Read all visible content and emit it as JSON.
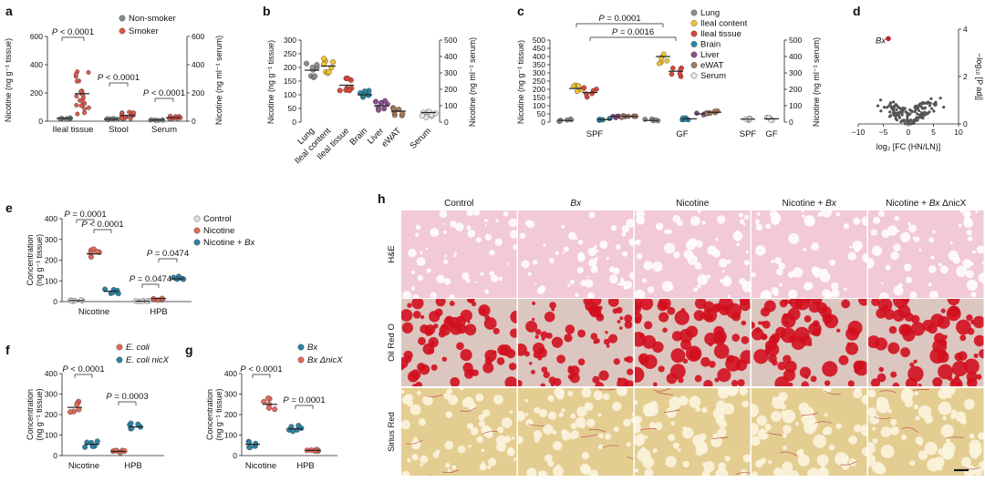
{
  "panel_letters": [
    "a",
    "b",
    "c",
    "d",
    "e",
    "f",
    "g",
    "h"
  ],
  "colors": {
    "non_smoker": "#7f8f8f",
    "smoker": "#dc5a4f",
    "lung": "#8e8e8e",
    "ileal_content": "#f1c232",
    "ileal_tissue": "#d9473b",
    "brain": "#2a84a5",
    "liver": "#8c4f8f",
    "ewat": "#a67b5b",
    "serum": "#e7e7e7",
    "control": "#e0e0e0",
    "nicotine": "#e26a5a",
    "nicotine_bx": "#2b83a6",
    "ecoli": "#e26a5a",
    "ecoli_nicx": "#2b83a6",
    "bx": "#2b83a6",
    "bx_dnicx": "#e26a5a",
    "volcano": "#555555",
    "bx_point": "#b9243a",
    "he_bg": "#f2c9d6",
    "he_cell": "#ffffff",
    "oro_bg": "#dcc7c0",
    "oro_cell": "#d20f1f",
    "sr_bg": "#e4cd91",
    "sr_cell": "#fbf4de"
  },
  "chart_data": [
    {
      "panel": "a",
      "type": "scatter",
      "ylabel_left": "Nicotine (ng g⁻¹ tissue)",
      "ylabel_right": "Nicotine (ng ml⁻¹ serum)",
      "ylim_left": [
        0,
        600
      ],
      "yticks_left": [
        "0",
        "200",
        "400",
        "600"
      ],
      "ylim_right": [
        0,
        600
      ],
      "yticks_right": [
        "0",
        "200",
        "400",
        "600"
      ],
      "categories": [
        "Ileal tissue",
        "Stool",
        "Serum"
      ],
      "series": [
        {
          "name": "Non-smoker",
          "values": [
            20,
            15,
            8
          ]
        },
        {
          "name": "Smoker",
          "values": [
            195,
            40,
            25
          ]
        }
      ],
      "annotations": [
        "P < 0.0001",
        "P < 0.0001",
        "P < 0.0001"
      ]
    },
    {
      "panel": "b",
      "type": "scatter",
      "ylabel_left": "Nicotine (ng g⁻¹ tissue)",
      "ylabel_right": "Nicotine (ng ml⁻¹ serum)",
      "ylim_left": [
        0,
        300
      ],
      "yticks_left": [
        "0",
        "50",
        "100",
        "150",
        "200",
        "250",
        "300"
      ],
      "ylim_right": [
        0,
        500
      ],
      "yticks_right": [
        "0",
        "100",
        "200",
        "300",
        "400",
        "500"
      ],
      "categories": [
        "Lung",
        "Ileal content",
        "Ileal tissue",
        "Brain",
        "Liver",
        "eWAT",
        "Serum"
      ],
      "values": [
        190,
        205,
        135,
        100,
        60,
        40,
        35
      ]
    },
    {
      "panel": "c",
      "type": "scatter",
      "ylabel_left": "Nicotine (ng g⁻¹ tissue)",
      "ylabel_right": "Nicotine (ng ml⁻¹ serum)",
      "ylim_left": [
        0,
        500
      ],
      "yticks_left": [
        "0",
        "50",
        "100",
        "150",
        "200",
        "250",
        "300",
        "350",
        "400",
        "450",
        "500"
      ],
      "ylim_right": [
        0,
        500
      ],
      "yticks_right": [
        "0",
        "100",
        "200",
        "300",
        "400",
        "500"
      ],
      "groups": [
        "SPF",
        "GF",
        "SPF",
        "GF"
      ],
      "legend": [
        "Lung",
        "Ileal content",
        "Ileal tissue",
        "Brain",
        "Liver",
        "eWAT",
        "Serum"
      ],
      "series": [
        {
          "name": "Lung",
          "values": [
            10,
            10
          ]
        },
        {
          "name": "Ileal content",
          "values": [
            205,
            400
          ]
        },
        {
          "name": "Ileal tissue",
          "values": [
            180,
            310
          ]
        },
        {
          "name": "Brain",
          "values": [
            15,
            20
          ]
        },
        {
          "name": "Liver",
          "values": [
            35,
            50
          ]
        },
        {
          "name": "eWAT",
          "values": [
            35,
            60
          ]
        },
        {
          "name": "Serum",
          "values": [
            18,
            20
          ]
        }
      ],
      "annotations": [
        "P = 0.0001",
        "P = 0.0016"
      ]
    },
    {
      "panel": "d",
      "type": "scatter",
      "xlabel": "log₂ [FC (HN/LN)]",
      "ylabel": "−log₁₀ [P adj]",
      "xlim": [
        -10,
        10
      ],
      "xticks": [
        "−10",
        "−5",
        "0",
        "5",
        "10"
      ],
      "ylim": [
        0,
        4
      ],
      "yticks": [
        "0",
        "2",
        "4"
      ],
      "highlight": {
        "label": "Bx",
        "x": -4,
        "y": 3.6
      }
    },
    {
      "panel": "e",
      "type": "scatter",
      "ylabel": "Concentration (ng g⁻¹ tissue)",
      "ylim": [
        0,
        400
      ],
      "yticks": [
        "0",
        "100",
        "200",
        "300",
        "400"
      ],
      "categories": [
        "Nicotine",
        "HPB"
      ],
      "series": [
        {
          "name": "Control",
          "values": [
            5,
            2
          ]
        },
        {
          "name": "Nicotine",
          "values": [
            230,
            15
          ]
        },
        {
          "name": "Nicotine + Bx",
          "values": [
            50,
            110
          ]
        }
      ],
      "annotations": [
        "P = 0.0001",
        "P < 0.0001",
        "P = 0.0474",
        "P = 0.0474"
      ]
    },
    {
      "panel": "f",
      "type": "scatter",
      "ylabel": "Concentration (ng g⁻¹ tissue)",
      "ylim": [
        0,
        400
      ],
      "yticks": [
        "0",
        "100",
        "200",
        "300",
        "400"
      ],
      "categories": [
        "Nicotine",
        "HPB"
      ],
      "series": [
        {
          "name": "E. coli",
          "values": [
            235,
            20
          ]
        },
        {
          "name": "E. coli nicX",
          "values": [
            55,
            140
          ]
        }
      ],
      "annotations": [
        "P < 0.0001",
        "P = 0.0003"
      ]
    },
    {
      "panel": "g",
      "type": "scatter",
      "ylabel": "Concentration (ng g⁻¹ tissue)",
      "ylim": [
        0,
        400
      ],
      "yticks": [
        "0",
        "100",
        "200",
        "300",
        "400"
      ],
      "categories": [
        "Nicotine",
        "HPB"
      ],
      "series": [
        {
          "name": "Bx",
          "values": [
            55,
            130
          ]
        },
        {
          "name": "Bx ΔnicX",
          "values": [
            250,
            25
          ]
        }
      ],
      "annotations": [
        "P < 0.0001",
        "P = 0.0001"
      ]
    }
  ],
  "panel_h": {
    "columns": [
      "Control",
      "Bx",
      "Nicotine",
      "Nicotine + Bx",
      "Nicotine + Bx ΔnicX"
    ],
    "rows": [
      "H&E",
      "Oil Red O",
      "Sirius Red"
    ]
  }
}
